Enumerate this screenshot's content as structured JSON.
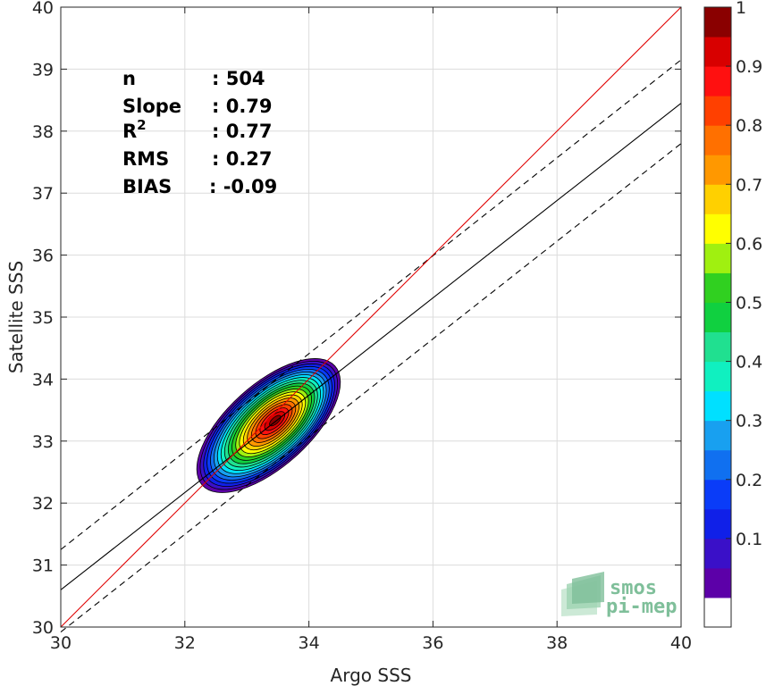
{
  "chart_data": {
    "type": "contour",
    "xlabel": "Argo SSS",
    "ylabel": "Satellite SSS",
    "xlim": [
      30,
      40
    ],
    "ylim": [
      30,
      40
    ],
    "xticks": [
      30,
      32,
      34,
      36,
      38,
      40
    ],
    "yticks": [
      30,
      31,
      32,
      33,
      34,
      35,
      36,
      37,
      38,
      39,
      40
    ],
    "grid": true,
    "stats": [
      {
        "label": "n",
        "value": ": 504"
      },
      {
        "label": "Slope",
        "value": ": 0.79"
      },
      {
        "label": "R",
        "sup": "2",
        "value": ": 0.77"
      },
      {
        "label": "RMS",
        "value": ": 0.27"
      },
      {
        "label": "BIAS",
        "value": ": -0.09"
      }
    ],
    "lines": {
      "identity": {
        "x": [
          30,
          40
        ],
        "y": [
          30,
          40
        ],
        "color": "#e00000",
        "style": "solid"
      },
      "fit": {
        "x": [
          30,
          40
        ],
        "y": [
          30.6,
          38.45
        ],
        "color": "#000000",
        "style": "solid"
      },
      "fit_upper": {
        "x": [
          30,
          40
        ],
        "y": [
          31.25,
          39.15
        ],
        "color": "#000000",
        "style": "dashed"
      },
      "fit_lower": {
        "x": [
          30,
          40
        ],
        "y": [
          29.92,
          37.8
        ],
        "color": "#000000",
        "style": "dashed"
      }
    },
    "density": {
      "center": [
        33.35,
        33.25
      ],
      "outer_extent_x": [
        32.1,
        34.2
      ],
      "outer_extent_y": [
        32.05,
        34.1
      ]
    },
    "colorbar": {
      "ticks": [
        "0.1",
        "0.2",
        "0.3",
        "0.4",
        "0.5",
        "0.6",
        "0.7",
        "0.8",
        "0.9",
        "1"
      ],
      "levels": [
        0,
        0.05,
        0.1,
        0.15,
        0.2,
        0.25,
        0.3,
        0.35,
        0.4,
        0.45,
        0.5,
        0.55,
        0.6,
        0.65,
        0.7,
        0.75,
        0.8,
        0.85,
        0.9,
        0.95,
        1
      ],
      "colors": [
        "#ffffff",
        "#5c00a8",
        "#3a10c8",
        "#1020e8",
        "#0a3cf8",
        "#1070f0",
        "#18a0f0",
        "#00e0ff",
        "#10f0c0",
        "#20e090",
        "#10d040",
        "#30d020",
        "#a0f010",
        "#ffff00",
        "#ffd000",
        "#ff9800",
        "#ff7000",
        "#ff4000",
        "#ff1010",
        "#d80000",
        "#8a0000"
      ]
    }
  },
  "logo": {
    "line1": "smos",
    "line2": "pi-mep"
  }
}
